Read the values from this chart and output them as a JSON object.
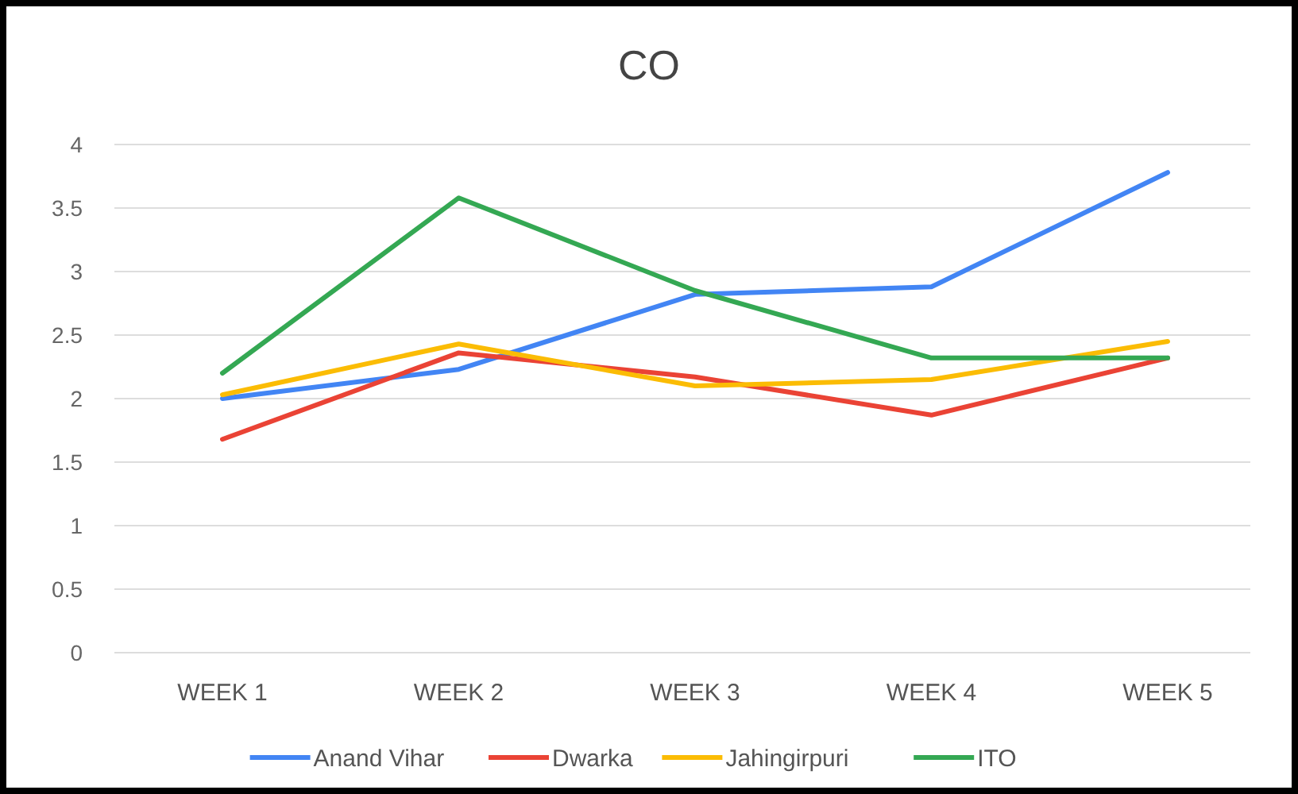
{
  "chart_data": {
    "type": "line",
    "title": "CO",
    "categories": [
      "WEEK 1",
      "WEEK 2",
      "WEEK 3",
      "WEEK 4",
      "WEEK 5"
    ],
    "series": [
      {
        "name": "Anand Vihar",
        "color": "#4285f4",
        "values": [
          2.0,
          2.23,
          2.82,
          2.88,
          3.78
        ]
      },
      {
        "name": "Dwarka",
        "color": "#ea4335",
        "values": [
          1.68,
          2.36,
          2.17,
          1.87,
          2.32
        ]
      },
      {
        "name": "Jahingirpuri",
        "color": "#fbbc04",
        "values": [
          2.03,
          2.43,
          2.1,
          2.15,
          2.45
        ]
      },
      {
        "name": "ITO",
        "color": "#34a853",
        "values": [
          2.2,
          3.58,
          2.85,
          2.32,
          2.32
        ]
      }
    ],
    "ylim": [
      0,
      4
    ],
    "yticks": [
      0,
      0.5,
      1,
      1.5,
      2,
      2.5,
      3,
      3.5,
      4
    ],
    "grid": "y",
    "legend": "bottom",
    "marker": "none",
    "line_style": "solid"
  }
}
